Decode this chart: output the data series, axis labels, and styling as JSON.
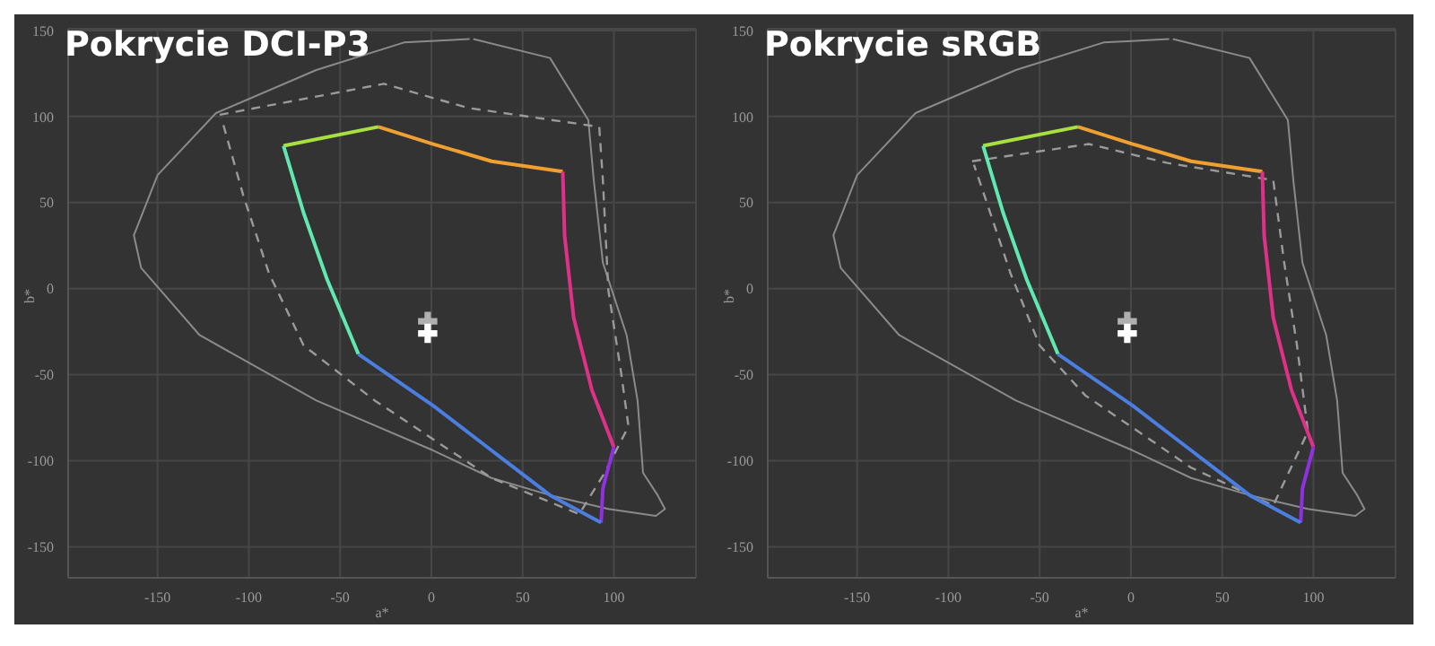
{
  "chart_data": [
    {
      "type": "line",
      "title": "Pokrycie DCI-P3",
      "xlabel": "a*",
      "ylabel": "b*",
      "xlim": [
        -199,
        145
      ],
      "ylim": [
        -168,
        151
      ],
      "xticks": [
        -150,
        -100,
        -50,
        0,
        50,
        100
      ],
      "yticks": [
        -150,
        -100,
        -50,
        0,
        50,
        100,
        150
      ],
      "grid": true,
      "legend": false,
      "series": [
        {
          "color": "#8a8a8a",
          "line_style": "solid",
          "x": [
            23,
            65,
            86,
            89,
            94,
            107,
            113,
            116,
            124,
            128,
            123,
            97,
            65,
            33,
            1,
            -63,
            -127,
            -159,
            -163,
            -150,
            -118,
            -63,
            -15,
            21
          ],
          "values": [
            145,
            134,
            98,
            63,
            15,
            -27,
            -65,
            -107,
            -120,
            -128,
            -132,
            -128,
            -120,
            -110,
            -94,
            -65,
            -27,
            12,
            31,
            66,
            102,
            127,
            143,
            145
          ]
        },
        {
          "color": "#9a9a9a",
          "line_style": "dashed",
          "x": [
            -116,
            -26,
            20,
            92,
            94,
            97,
            104,
            108,
            95,
            81,
            33,
            -31,
            -70,
            -89,
            -103,
            -115
          ],
          "values": [
            101,
            119,
            105,
            94,
            63,
            -1,
            -49,
            -80,
            -107,
            -131,
            -110,
            -65,
            -33,
            9,
            54,
            99
          ]
        },
        {
          "color": "#a8e040",
          "line_style": "solid",
          "x": [
            -81,
            -29
          ],
          "values": [
            83,
            94
          ]
        },
        {
          "color": "#f0a030",
          "line_style": "solid",
          "x": [
            -29,
            1,
            33,
            72
          ],
          "values": [
            94,
            84,
            74,
            68
          ]
        },
        {
          "color": "#e0308a",
          "line_style": "solid",
          "x": [
            72,
            73,
            78,
            88,
            100
          ],
          "values": [
            68,
            31,
            -17,
            -59,
            -92
          ]
        },
        {
          "color": "#9030e0",
          "line_style": "solid",
          "x": [
            100,
            94,
            93
          ],
          "values": [
            -92,
            -116,
            -136
          ]
        },
        {
          "color": "#4a7ee0",
          "line_style": "solid",
          "x": [
            93,
            65,
            33,
            1,
            -40
          ],
          "values": [
            -136,
            -120,
            -94,
            -68,
            -38
          ]
        },
        {
          "color": "#60e8b0",
          "line_style": "solid",
          "x": [
            -40,
            -57,
            -70,
            -81
          ],
          "values": [
            -38,
            5,
            44,
            83
          ]
        },
        {
          "type": "scatter",
          "marker": "cross",
          "color": "#b0b0b0",
          "x": [
            -2
          ],
          "values": [
            -19
          ]
        },
        {
          "type": "scatter",
          "marker": "cross",
          "color": "#ffffff",
          "x": [
            -2
          ],
          "values": [
            -26
          ]
        }
      ]
    },
    {
      "type": "line",
      "title": "Pokrycie sRGB",
      "xlabel": "a*",
      "ylabel": "b*",
      "xlim": [
        -199,
        145
      ],
      "ylim": [
        -168,
        151
      ],
      "xticks": [
        -150,
        -100,
        -50,
        0,
        50,
        100
      ],
      "yticks": [
        -150,
        -100,
        -50,
        0,
        50,
        100,
        150
      ],
      "grid": true,
      "legend": false,
      "series": [
        {
          "color": "#8a8a8a",
          "line_style": "solid",
          "x": [
            23,
            65,
            86,
            89,
            94,
            107,
            113,
            116,
            124,
            128,
            123,
            97,
            65,
            33,
            1,
            -63,
            -127,
            -159,
            -163,
            -150,
            -118,
            -63,
            -15,
            21
          ],
          "values": [
            145,
            134,
            98,
            63,
            15,
            -27,
            -65,
            -107,
            -120,
            -128,
            -132,
            -128,
            -120,
            -110,
            -94,
            -65,
            -27,
            12,
            31,
            66,
            102,
            127,
            143,
            145
          ]
        },
        {
          "color": "#9a9a9a",
          "line_style": "dashed",
          "x": [
            -87,
            -23,
            20,
            78,
            84,
            91,
            97,
            78,
            33,
            -25,
            -50,
            -66,
            -78,
            -86
          ],
          "values": [
            74,
            84,
            73,
            63,
            15,
            -33,
            -83,
            -126,
            -104,
            -62,
            -33,
            9,
            47,
            72
          ]
        },
        {
          "color": "#a8e040",
          "line_style": "solid",
          "x": [
            -81,
            -29
          ],
          "values": [
            83,
            94
          ]
        },
        {
          "color": "#f0a030",
          "line_style": "solid",
          "x": [
            -29,
            1,
            33,
            72
          ],
          "values": [
            94,
            84,
            74,
            68
          ]
        },
        {
          "color": "#e0308a",
          "line_style": "solid",
          "x": [
            72,
            73,
            78,
            88,
            100
          ],
          "values": [
            68,
            31,
            -17,
            -59,
            -92
          ]
        },
        {
          "color": "#9030e0",
          "line_style": "solid",
          "x": [
            100,
            94,
            93
          ],
          "values": [
            -92,
            -116,
            -136
          ]
        },
        {
          "color": "#4a7ee0",
          "line_style": "solid",
          "x": [
            93,
            65,
            33,
            1,
            -40
          ],
          "values": [
            -136,
            -120,
            -94,
            -68,
            -38
          ]
        },
        {
          "color": "#60e8b0",
          "line_style": "solid",
          "x": [
            -40,
            -57,
            -70,
            -81
          ],
          "values": [
            -38,
            5,
            44,
            83
          ]
        },
        {
          "type": "scatter",
          "marker": "cross",
          "color": "#b0b0b0",
          "x": [
            -2
          ],
          "values": [
            -19
          ]
        },
        {
          "type": "scatter",
          "marker": "cross",
          "color": "#ffffff",
          "x": [
            -2
          ],
          "values": [
            -26
          ]
        }
      ]
    }
  ]
}
